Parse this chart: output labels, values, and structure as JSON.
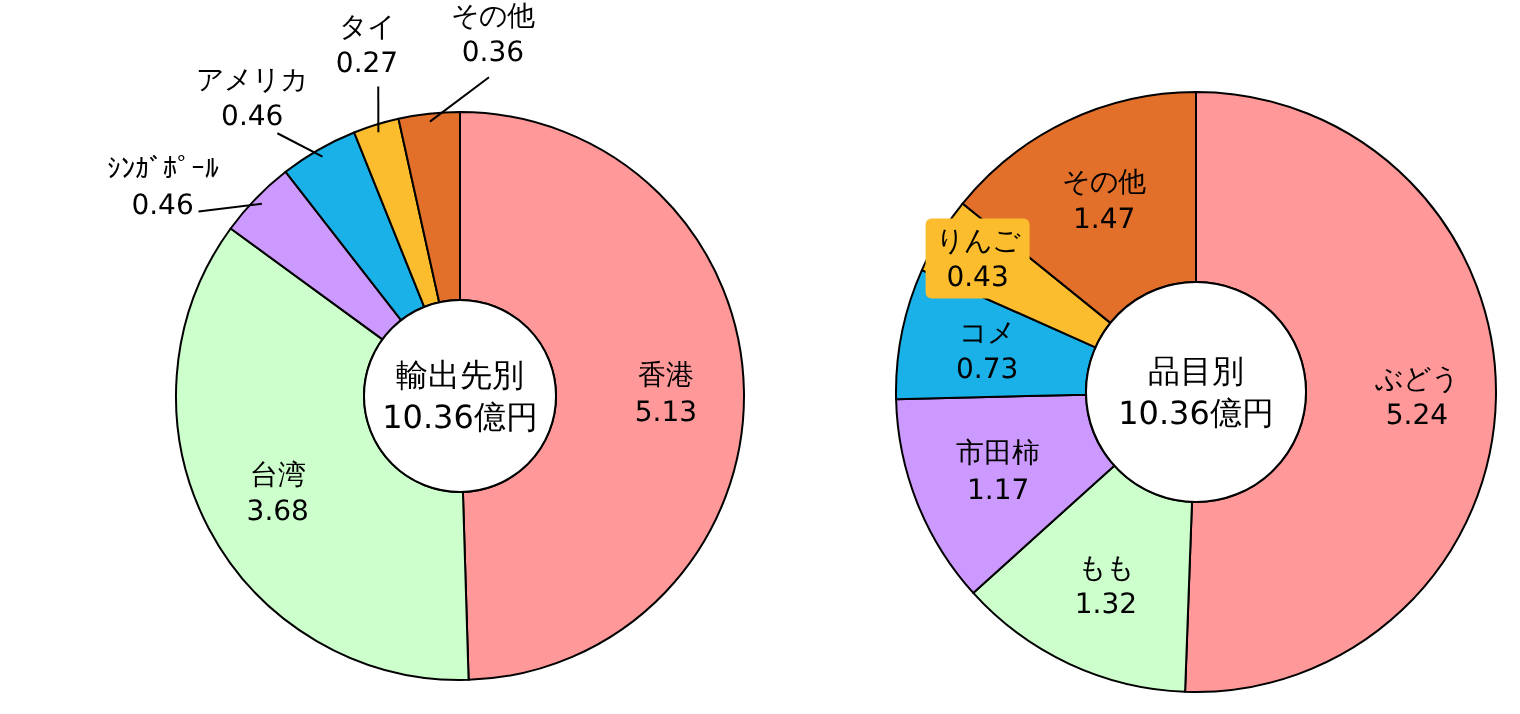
{
  "chart_data": [
    {
      "type": "donut",
      "title": "輸出先別",
      "subtitle": "10.36億円",
      "categories": [
        "香港",
        "台湾",
        "ｼﾝｶﾞﾎﾟｰﾙ",
        "アメリカ",
        "タイ",
        "その他"
      ],
      "values": [
        5.13,
        3.68,
        0.46,
        0.46,
        0.27,
        0.36
      ],
      "colors": [
        "#ff9999",
        "#ccffcc",
        "#cc99ff",
        "#1ab0e8",
        "#fbbd2e",
        "#e2702a"
      ],
      "data_labels": true
    },
    {
      "type": "donut",
      "title": "品目別",
      "subtitle": "10.36億円",
      "categories": [
        "ぶどう",
        "もも",
        "市田柿",
        "コメ",
        "りんご",
        "その他"
      ],
      "values": [
        5.24,
        1.32,
        1.17,
        0.73,
        0.43,
        1.47
      ],
      "colors": [
        "#ff9999",
        "#ccffcc",
        "#cc99ff",
        "#1ab0e8",
        "#fbbd2e",
        "#e2702a"
      ],
      "data_labels": true
    }
  ]
}
